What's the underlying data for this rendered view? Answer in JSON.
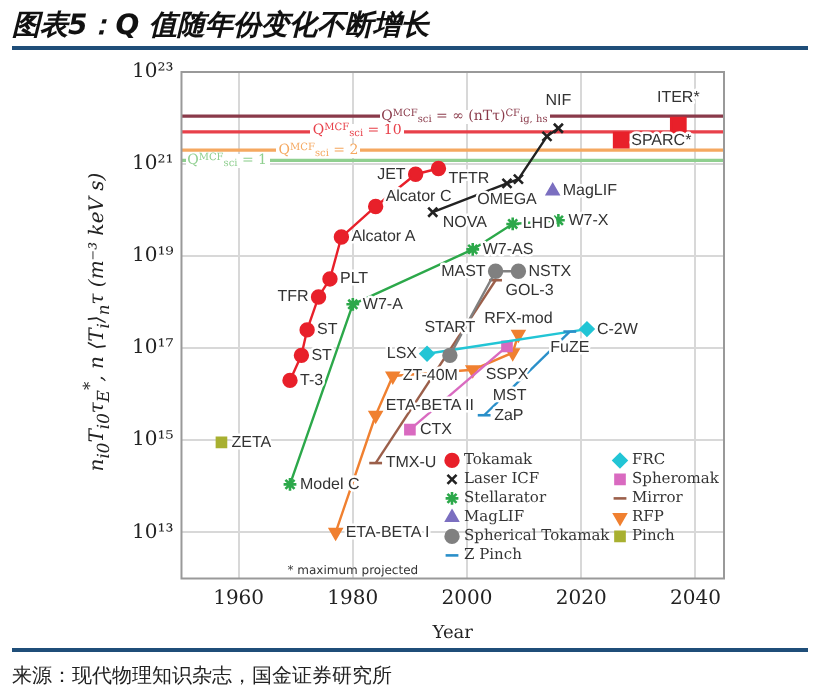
{
  "chart_data": {
    "type": "line",
    "title": "图表5：Q 值随年份变化不断增长",
    "xlabel": "Year",
    "ylabel": "n$_{i0}$T$_{i0}$τ$_{E}$$^{*}$, n ⟨T$_{i}$⟩$_{n}$τ (m⁻³ keV s)",
    "xlim": [
      1950,
      2045
    ],
    "xticks": [
      1960,
      1980,
      2000,
      2020,
      2040
    ],
    "ylim": [
      1000000000000.0,
      1e+23
    ],
    "yticks": [
      {
        "value": 10000000000000.0,
        "label": "10¹³"
      },
      {
        "value": 1000000000000000.0,
        "label": "10¹⁵"
      },
      {
        "value": 1e+17,
        "label": "10¹⁷"
      },
      {
        "value": 1e+19,
        "label": "10¹⁹"
      },
      {
        "value": 1e+21,
        "label": "10²¹"
      },
      {
        "value": 1e+23,
        "label": "10²³"
      }
    ],
    "log": "y",
    "grid": true,
    "legend": "bottom right",
    "series": [
      {
        "name": "Tokamak",
        "color": "#e8202a",
        "marker": "circle",
        "x": [
          1969,
          1971,
          1972,
          1974,
          1976,
          1978,
          1984,
          1991,
          1995
        ],
        "values": [
          2e+16,
          7e+16,
          2.5e+17,
          1.3e+18,
          3.2e+18,
          2.6e+19,
          1.2e+20,
          6e+20,
          8e+20
        ]
      },
      {
        "name": "Laser ICF",
        "color": "#222222",
        "marker": "cross",
        "x": [
          1994,
          2007,
          2009,
          2014,
          2016
        ],
        "values": [
          9e+19,
          3.8e+20,
          4.7e+20,
          4e+21,
          6e+21
        ]
      },
      {
        "name": "Stellarator",
        "color": "#2ca84a",
        "marker": "cross",
        "x": [
          1969,
          1980,
          2001,
          2008,
          2016
        ],
        "values": [
          110000000000000.0,
          9e+17,
          1.4e+19,
          5e+19,
          6e+19
        ]
      },
      {
        "name": "MagLIF",
        "color": "#7b6fc0",
        "marker": "triangle",
        "x": [
          2015
        ],
        "values": [
          2.6e+20
        ]
      },
      {
        "name": "Spherical Tokamak",
        "color": "#808080",
        "marker": "circle",
        "x": [
          1997,
          2005,
          2009
        ],
        "values": [
          7e+16,
          4.7e+18,
          4.7e+18
        ]
      },
      {
        "name": "Z Pinch",
        "color": "#2a8fc9",
        "marker": "none",
        "x": [
          2003,
          2018
        ],
        "values": [
          3500000000000000.0,
          2.3e+17
        ]
      },
      {
        "name": "FRC",
        "color": "#22c5d5",
        "marker": "diamond",
        "x": [
          1993,
          2021
        ],
        "values": [
          7.6e+16,
          2.6e+17
        ]
      },
      {
        "name": "Spheromak",
        "color": "#d96ac0",
        "marker": "square",
        "x": [
          1990,
          2007
        ],
        "values": [
          1700000000000000.0,
          1.1e+17
        ]
      },
      {
        "name": "Mirror",
        "color": "#9b5f4a",
        "marker": "none",
        "x": [
          1984,
          2005
        ],
        "values": [
          320000000000000.0,
          3e+18
        ]
      },
      {
        "name": "RFP",
        "color": "#f08030",
        "marker": "triangle-down",
        "x": [
          1977,
          1984,
          1987,
          2001,
          2008,
          2009
        ],
        "values": [
          10000000000000.0,
          3500000000000000.0,
          2.5e+16,
          3.4e+16,
          8e+16,
          2e+17
        ]
      },
      {
        "name": "Pinch",
        "color": "#a8b030",
        "marker": "square",
        "x": [
          1957
        ],
        "values": [
          900000000000000.0
        ]
      },
      {
        "type": "scatter",
        "color": "#e8202a",
        "marker": "square",
        "x": [
          2027,
          2037
        ],
        "values": [
          3.3e+21,
          7e+21
        ]
      }
    ],
    "ref_lines": [
      {
        "axis": "y",
        "value": 1.2e+21,
        "color": "#8fcf8f"
      },
      {
        "axis": "y",
        "value": 2e+21,
        "color": "#f5a860"
      },
      {
        "axis": "y",
        "value": 5e+21,
        "color": "#e8404a"
      },
      {
        "axis": "y",
        "value": 1.1e+22,
        "color": "#8a3a4a"
      }
    ],
    "annotations": [
      "* maximum projected",
      "来源：现代物理知识杂志，国金证券研究所",
      {
        "text": "Q$^{MCF}$$_{sci}$ = 1",
        "x": 1951,
        "y": 1.2e+21
      },
      {
        "text": "Q$^{MCF}$$_{sci}$ = 2",
        "x": 1967,
        "y": 2e+21
      },
      {
        "text": "Q$^{MCF}$$_{sci}$ = 10",
        "x": 1973,
        "y": 5e+21
      },
      {
        "text": "Q$^{MCF}$$_{sci}$ = ∞ (nTτ)$^{CF}$$_{ig, hs}$",
        "x": 1985,
        "y": 1.1e+22
      },
      {
        "text": "T-3",
        "x": 1969,
        "y": 2e+16
      },
      {
        "text": "ST",
        "x": 1971,
        "y": 7e+16
      },
      {
        "text": "ST",
        "x": 1972,
        "y": 2.5e+17
      },
      {
        "text": "TFR",
        "x": 1974,
        "y": 1.3e+18
      },
      {
        "text": "PLT",
        "x": 1976,
        "y": 3.2e+18
      },
      {
        "text": "Alcator A",
        "x": 1978,
        "y": 2.6e+19
      },
      {
        "text": "Alcator C",
        "x": 1984,
        "y": 1.2e+20
      },
      {
        "text": "JET",
        "x": 1991,
        "y": 6e+20
      },
      {
        "text": "TFTR",
        "x": 1995,
        "y": 8e+20
      },
      {
        "text": "NOVA",
        "x": 1994,
        "y": 9e+19
      },
      {
        "text": "OMEGA",
        "x": 2007,
        "y": 3.8e+20
      },
      {
        "text": "NIF",
        "x": 2016,
        "y": 6e+21
      },
      {
        "text": "Model C",
        "x": 1969,
        "y": 110000000000000.0
      },
      {
        "text": "W7-A",
        "x": 1980,
        "y": 9e+17
      },
      {
        "text": "W7-AS",
        "x": 2001,
        "y": 1.4e+19
      },
      {
        "text": "LHD",
        "x": 2008,
        "y": 5e+19
      },
      {
        "text": "W7-X",
        "x": 2016,
        "y": 6e+19
      },
      {
        "text": "MagLIF",
        "x": 2015,
        "y": 2.6e+20
      },
      {
        "text": "START",
        "x": 1997,
        "y": 7e+16
      },
      {
        "text": "MAST",
        "x": 2005,
        "y": 4.7e+18
      },
      {
        "text": "NSTX",
        "x": 2009,
        "y": 4.7e+18
      },
      {
        "text": "ZaP",
        "x": 2003,
        "y": 3500000000000000.0
      },
      {
        "text": "FuZE",
        "x": 2018,
        "y": 2.3e+17
      },
      {
        "text": "LSX",
        "x": 1993,
        "y": 7.6e+16
      },
      {
        "text": "C-2W",
        "x": 2021,
        "y": 2.6e+17
      },
      {
        "text": "CTX",
        "x": 1990,
        "y": 1700000000000000.0
      },
      {
        "text": "SSPX",
        "x": 2007,
        "y": 1.1e+17
      },
      {
        "text": "TMX-U",
        "x": 1984,
        "y": 320000000000000.0
      },
      {
        "text": "GOL-3",
        "x": 2005,
        "y": 3e+18
      },
      {
        "text": "ETA-BETA I",
        "x": 1977,
        "y": 10000000000000.0
      },
      {
        "text": "ETA-BETA II",
        "x": 1984,
        "y": 3500000000000000.0
      },
      {
        "text": "ZT-40M",
        "x": 1987,
        "y": 2.5e+16
      },
      {
        "text": "MST",
        "x": 2001,
        "y": 3.4e+16
      },
      {
        "text": "RFX-mod",
        "x": 2009,
        "y": 2e+17
      },
      {
        "text": "ZETA",
        "x": 1957,
        "y": 900000000000000.0
      },
      {
        "text": "SPARC*",
        "x": 2027,
        "y": 3.3e+21
      },
      {
        "text": "ITER*",
        "x": 2037,
        "y": 7e+21
      }
    ]
  }
}
